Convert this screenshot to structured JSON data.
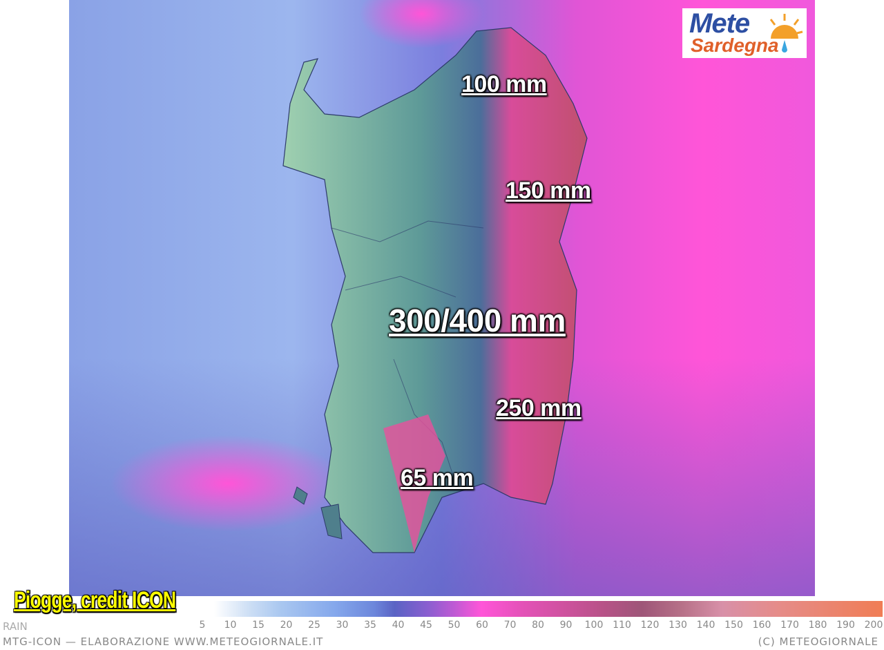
{
  "map": {
    "labels": [
      "100 mm",
      "150 mm",
      "300/400 mm",
      "250 mm",
      "65 mm"
    ],
    "colors": {
      "sea_west": "#7c8fe0",
      "sea_east": "#ff55d8",
      "land": "#6fa898",
      "heavy_rain": "#e0408f"
    }
  },
  "logo": {
    "line1": "Mete",
    "line2": "Sardegna"
  },
  "overlay_title": "Piogge, credit ICON",
  "colorbar": {
    "title_partial": "RAIN",
    "unit_range": [
      0,
      200
    ],
    "ticks": [
      "5",
      "10",
      "15",
      "20",
      "25",
      "30",
      "35",
      "40",
      "45",
      "50",
      "60",
      "70",
      "80",
      "90",
      "100",
      "110",
      "120",
      "130",
      "140",
      "150",
      "160",
      "170",
      "180",
      "190",
      "200"
    ]
  },
  "footer": {
    "left": "MTG-ICON — ELABORAZIONE WWW.METEOGIORNALE.IT",
    "right": "(C) METEOGIORNALE"
  }
}
